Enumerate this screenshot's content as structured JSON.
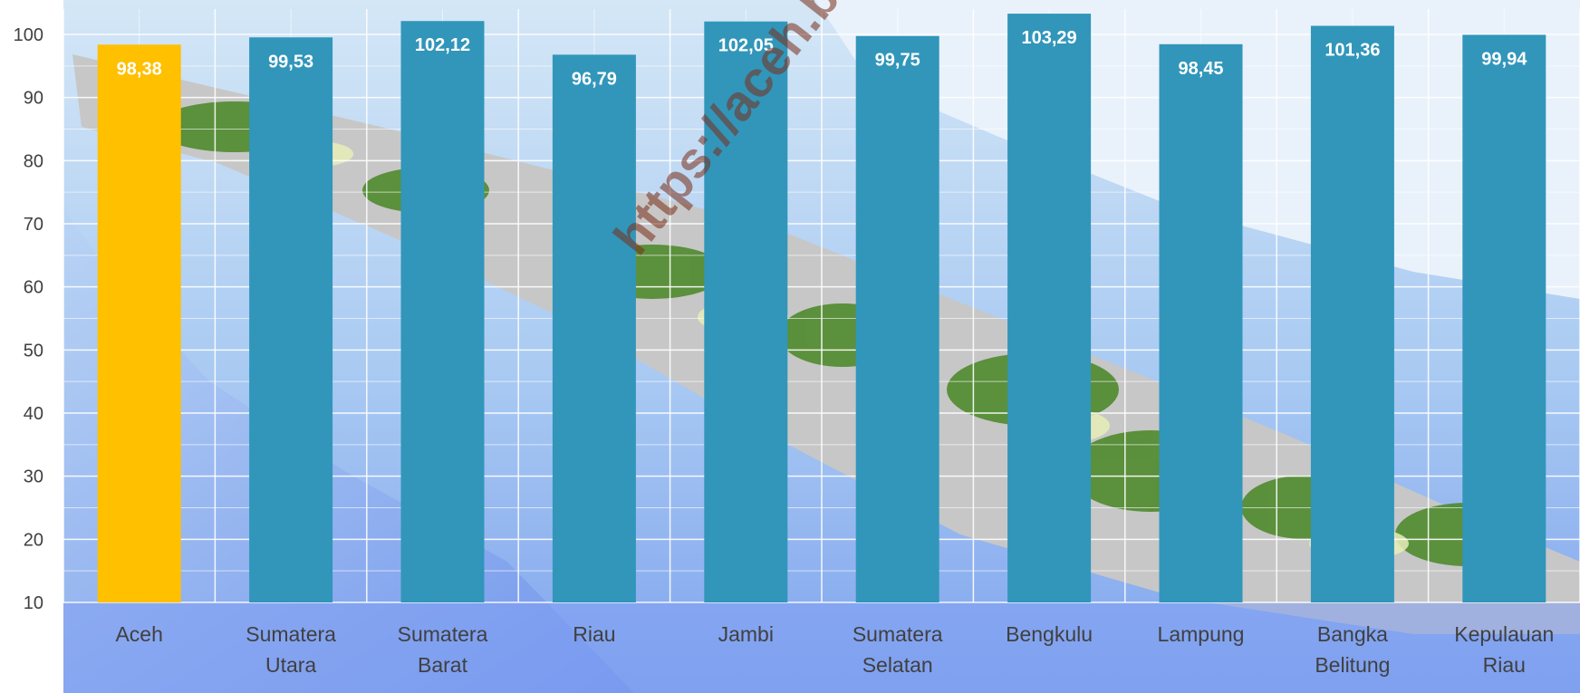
{
  "chart_data": {
    "type": "bar",
    "categories": [
      "Aceh",
      "Sumatera Utara",
      "Sumatera Barat",
      "Riau",
      "Jambi",
      "Sumatera Selatan",
      "Bengkulu",
      "Lampung",
      "Bangka Belitung",
      "Kepulauan Riau"
    ],
    "category_lines": [
      [
        "Aceh"
      ],
      [
        "Sumatera",
        "Utara"
      ],
      [
        "Sumatera",
        "Barat"
      ],
      [
        "Riau"
      ],
      [
        "Jambi"
      ],
      [
        "Sumatera",
        "Selatan"
      ],
      [
        "Bengkulu"
      ],
      [
        "Lampung"
      ],
      [
        "Bangka",
        "Belitung"
      ],
      [
        "Kepulauan",
        "Riau"
      ]
    ],
    "values": [
      98.38,
      99.53,
      102.12,
      96.79,
      102.05,
      99.75,
      103.29,
      98.45,
      101.36,
      99.94
    ],
    "data_labels": [
      "98,38",
      "99,53",
      "102,12",
      "96,79",
      "102,05",
      "99,75",
      "103,29",
      "98,45",
      "101,36",
      "99,94"
    ],
    "highlight_index": 0,
    "colors": {
      "highlight": "#FFC000",
      "default": "#3196BA"
    },
    "ylim": [
      10,
      100
    ],
    "yticks": [
      10,
      20,
      30,
      40,
      50,
      60,
      70,
      80,
      90,
      100
    ],
    "grid": true,
    "background": "map of Sumatra",
    "watermark": "https://aceh.b"
  }
}
